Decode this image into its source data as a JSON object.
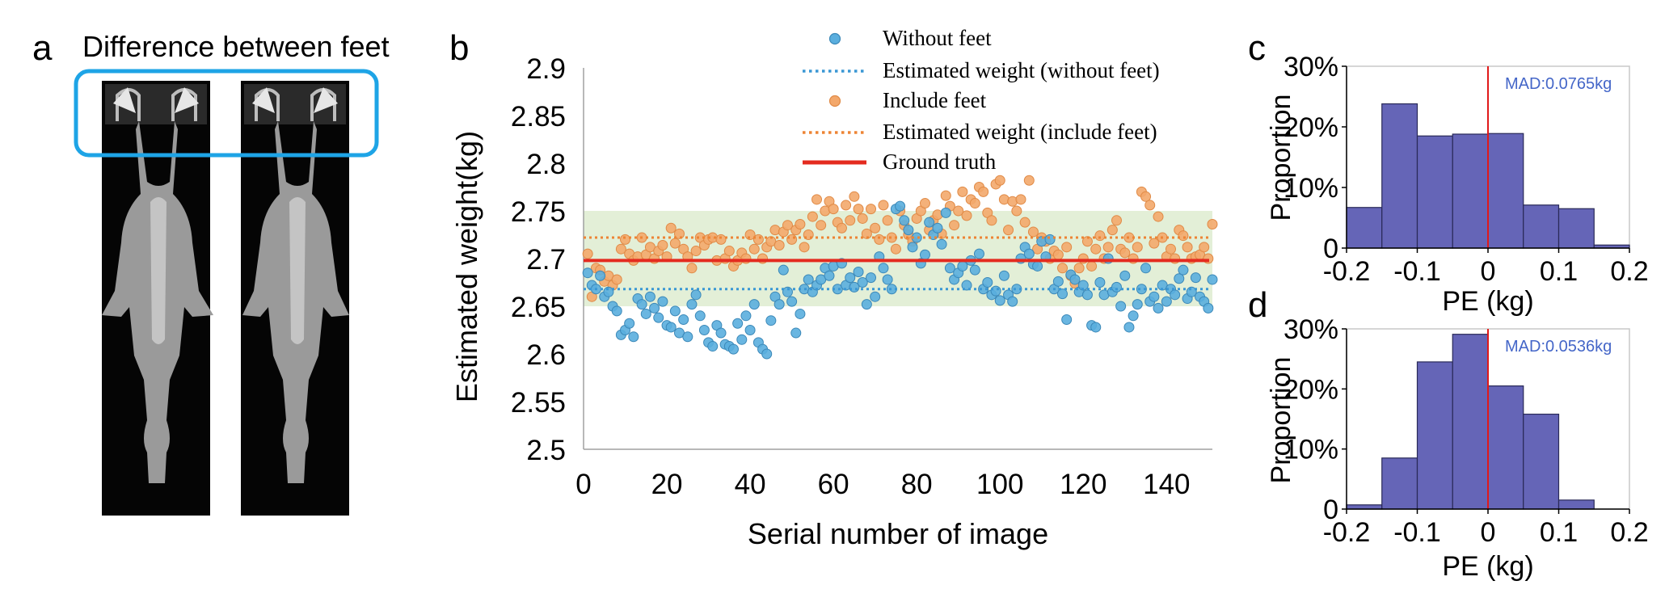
{
  "panels": {
    "a": {
      "letter": "a",
      "title": "Difference between feet"
    },
    "b": {
      "letter": "b"
    },
    "c": {
      "letter": "c"
    },
    "d": {
      "letter": "d"
    }
  },
  "colors": {
    "without": "#5aaede",
    "without_edge": "#3b88b8",
    "include": "#f3a86b",
    "include_edge": "#e08a46",
    "est_without": "#3a97d4",
    "est_include": "#ed8434",
    "ground_truth": "#e42b1f",
    "band": "#e3efd7",
    "hist_bar": "#6565b7",
    "hist_edge": "#2a2a58",
    "zero_line": "#e11919",
    "mad_text": "#4466c8",
    "highlight_box": "#1ea4e6"
  },
  "chart_data": [
    {
      "panel": "b",
      "type": "scatter",
      "xlabel": "Serial number of image",
      "ylabel": "Estimated weight(kg)",
      "xlim": [
        0,
        151
      ],
      "ylim": [
        2.5,
        2.9
      ],
      "xticks": [
        0,
        20,
        40,
        60,
        80,
        100,
        120,
        140
      ],
      "yticks": [
        2.5,
        2.55,
        2.6,
        2.65,
        2.7,
        2.75,
        2.8,
        2.85,
        2.9
      ],
      "band": [
        2.65,
        2.75
      ],
      "legend_position": "top-center",
      "series": [
        {
          "name": "Without feet",
          "kind": "scatter",
          "values": [
            2.685,
            2.672,
            2.668,
            2.682,
            2.66,
            2.665,
            2.65,
            2.645,
            2.62,
            2.625,
            2.632,
            2.618,
            2.658,
            2.652,
            2.642,
            2.66,
            2.648,
            2.638,
            2.655,
            2.63,
            2.628,
            2.645,
            2.622,
            2.636,
            2.618,
            2.652,
            2.662,
            2.64,
            2.625,
            2.612,
            2.608,
            2.63,
            2.622,
            2.61,
            2.608,
            2.605,
            2.632,
            2.615,
            2.64,
            2.625,
            2.652,
            2.612,
            2.605,
            2.6,
            2.635,
            2.66,
            2.652,
            2.688,
            2.665,
            2.655,
            2.622,
            2.642,
            2.668,
            2.678,
            2.665,
            2.672,
            2.678,
            2.69,
            2.682,
            2.692,
            2.668,
            2.695,
            2.672,
            2.68,
            2.67,
            2.686,
            2.675,
            2.652,
            2.68,
            2.66,
            2.702,
            2.69,
            2.678,
            2.668,
            2.752,
            2.755,
            2.74,
            2.73,
            2.712,
            2.722,
            2.695,
            2.704,
            2.738,
            2.725,
            2.732,
            2.715,
            2.748,
            2.69,
            2.678,
            2.685,
            2.692,
            2.672,
            2.698,
            2.688,
            2.705,
            2.668,
            2.675,
            2.662,
            2.666,
            2.656,
            2.682,
            2.662,
            2.655,
            2.668,
            2.7,
            2.712,
            2.705,
            2.694,
            2.692,
            2.718,
            2.702,
            2.72,
            2.668,
            2.676,
            2.663,
            2.636,
            2.683,
            2.678,
            2.665,
            2.672,
            2.662,
            2.63,
            2.628,
            2.675,
            2.662,
            2.7,
            2.665,
            2.67,
            2.65,
            2.682,
            2.628,
            2.64,
            2.652,
            2.668,
            2.69,
            2.655,
            2.66,
            2.648,
            2.672,
            2.655,
            2.668,
            2.662,
            2.679,
            2.688,
            2.658,
            2.665,
            2.68,
            2.66,
            2.655,
            2.648,
            2.678
          ]
        },
        {
          "name": "Estimated weight (without feet)",
          "kind": "hline",
          "y": 2.668
        },
        {
          "name": "Include feet",
          "kind": "scatter",
          "values": [
            2.705,
            2.66,
            2.69,
            2.688,
            2.676,
            2.682,
            2.672,
            2.678,
            2.71,
            2.72,
            2.705,
            2.698,
            2.702,
            2.722,
            2.704,
            2.712,
            2.7,
            2.708,
            2.714,
            2.702,
            2.732,
            2.716,
            2.726,
            2.71,
            2.702,
            2.69,
            2.708,
            2.722,
            2.714,
            2.72,
            2.722,
            2.698,
            2.72,
            2.7,
            2.708,
            2.692,
            2.698,
            2.706,
            2.7,
            2.725,
            2.71,
            2.72,
            2.7,
            2.712,
            2.718,
            2.73,
            2.714,
            2.728,
            2.735,
            2.72,
            2.73,
            2.736,
            2.712,
            2.725,
            2.744,
            2.762,
            2.735,
            2.75,
            2.76,
            2.752,
            2.738,
            2.732,
            2.756,
            2.74,
            2.765,
            2.752,
            2.742,
            2.726,
            2.752,
            2.732,
            2.72,
            2.756,
            2.74,
            2.722,
            2.71,
            2.75,
            2.735,
            2.725,
            2.718,
            2.742,
            2.75,
            2.758,
            2.73,
            2.74,
            2.746,
            2.726,
            2.766,
            2.755,
            2.735,
            2.75,
            2.77,
            2.745,
            2.762,
            2.758,
            2.775,
            2.77,
            2.748,
            2.74,
            2.778,
            2.782,
            2.762,
            2.73,
            2.76,
            2.75,
            2.762,
            2.738,
            2.782,
            2.728,
            2.71,
            2.722,
            2.718,
            2.7,
            2.708,
            2.704,
            2.69,
            2.712,
            2.682,
            2.674,
            2.69,
            2.7,
            2.718,
            2.692,
            2.71,
            2.724,
            2.7,
            2.712,
            2.73,
            2.74,
            2.71,
            2.706,
            2.722,
            2.7,
            2.712,
            2.77,
            2.765,
            2.756,
            2.716,
            2.744,
            2.722,
            2.702,
            2.71,
            2.7,
            2.73,
            2.724,
            2.712,
            2.7,
            2.702,
            2.704,
            2.712,
            2.7,
            2.736
          ]
        },
        {
          "name": "Estimated weight (include feet)",
          "kind": "hline",
          "y": 2.722
        },
        {
          "name": "Ground truth",
          "kind": "hline",
          "y": 2.698
        }
      ]
    },
    {
      "panel": "c",
      "type": "bar",
      "xlabel": "PE (kg)",
      "ylabel": "Proportion",
      "xlim": [
        -0.2,
        0.2
      ],
      "ylim": [
        0,
        0.3
      ],
      "xticks": [
        -0.2,
        -0.1,
        0,
        0.1,
        0.2
      ],
      "xtick_labels": [
        "-0.2",
        "-0.1",
        "0",
        "0.1",
        "0.2"
      ],
      "yticks": [
        0,
        0.1,
        0.2,
        0.3
      ],
      "ytick_labels": [
        "0",
        "10%",
        "20%",
        "30%"
      ],
      "annotation": "MAD:0.0765kg",
      "bin_edges": [
        -0.2,
        -0.15,
        -0.1,
        -0.05,
        0,
        0.05,
        0.1,
        0.15,
        0.2
      ],
      "values": [
        0.067,
        0.238,
        0.185,
        0.188,
        0.189,
        0.071,
        0.065,
        0.005
      ]
    },
    {
      "panel": "d",
      "type": "bar",
      "xlabel": "PE (kg)",
      "ylabel": "Proportion",
      "xlim": [
        -0.2,
        0.2
      ],
      "ylim": [
        0,
        0.3
      ],
      "xticks": [
        -0.2,
        -0.1,
        0,
        0.1,
        0.2
      ],
      "xtick_labels": [
        "-0.2",
        "-0.1",
        "0",
        "0.1",
        "0.2"
      ],
      "yticks": [
        0,
        0.1,
        0.2,
        0.3
      ],
      "ytick_labels": [
        "0",
        "10%",
        "20%",
        "30%"
      ],
      "annotation": "MAD:0.0536kg",
      "bin_edges": [
        -0.2,
        -0.15,
        -0.1,
        -0.05,
        0,
        0.05,
        0.1,
        0.15,
        0.2
      ],
      "values": [
        0.007,
        0.085,
        0.245,
        0.291,
        0.205,
        0.158,
        0.015,
        0.0
      ]
    }
  ]
}
